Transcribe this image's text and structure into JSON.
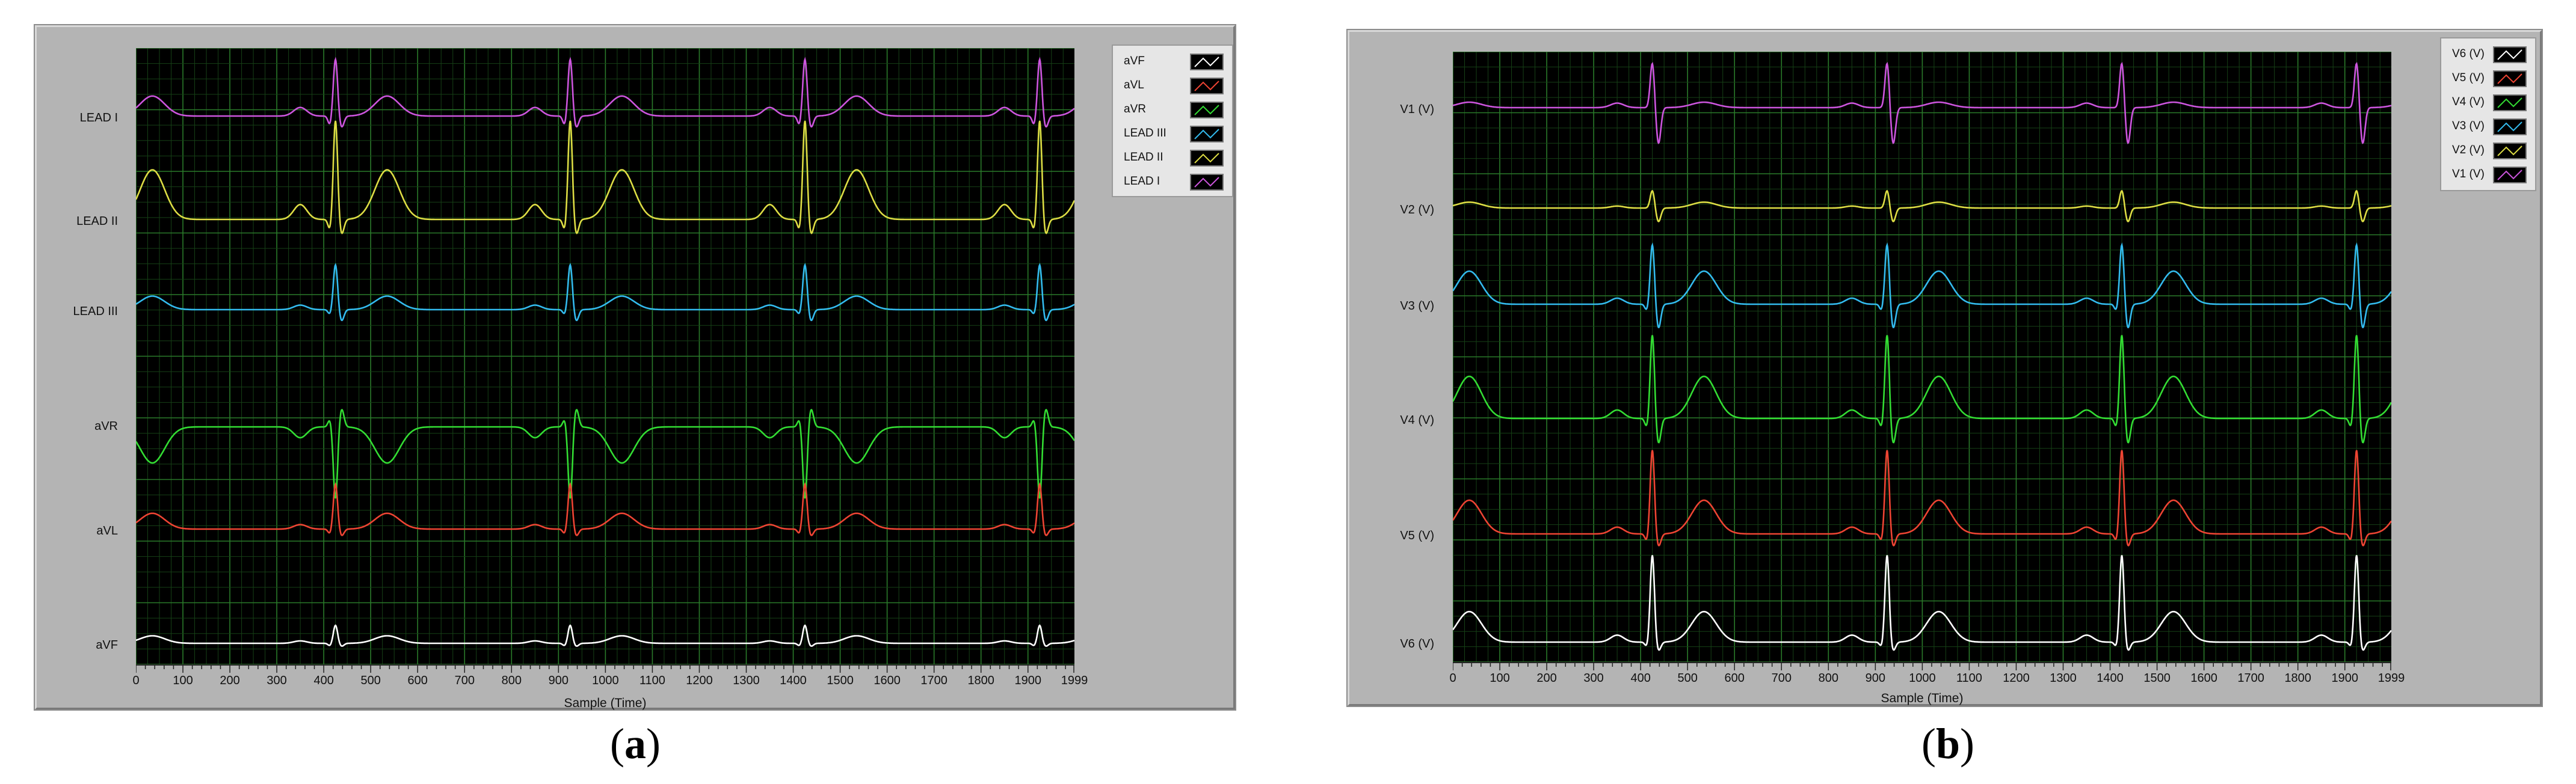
{
  "figures": [
    {
      "id": "a",
      "caption_letter": "a",
      "x_axis_title": "Sample (Time)",
      "x_ticks": [
        "0",
        "100",
        "200",
        "300",
        "400",
        "500",
        "600",
        "700",
        "800",
        "900",
        "1000",
        "1100",
        "1200",
        "1300",
        "1400",
        "1500",
        "1600",
        "1700",
        "1800",
        "1900",
        "1999"
      ],
      "channels": [
        "LEAD I",
        "LEAD II",
        "LEAD III",
        "aVR",
        "aVL",
        "aVF"
      ],
      "legend": [
        "aVF",
        "aVL",
        "aVR",
        "LEAD III",
        "LEAD II",
        "LEAD I"
      ]
    },
    {
      "id": "b",
      "caption_letter": "b",
      "x_axis_title": "Sample (Time)",
      "x_ticks": [
        "0",
        "100",
        "200",
        "300",
        "400",
        "500",
        "600",
        "700",
        "800",
        "900",
        "1000",
        "1100",
        "1200",
        "1300",
        "1400",
        "1500",
        "1600",
        "1700",
        "1800",
        "1900",
        "1999"
      ],
      "channels": [
        "V1 (V)",
        "V2 (V)",
        "V3 (V)",
        "V4 (V)",
        "V5 (V)",
        "V6 (V)"
      ],
      "legend": [
        "V6 (V)",
        "V5 (V)",
        "V4 (V)",
        "V3 (V)",
        "V2 (V)",
        "V1 (V)"
      ]
    }
  ],
  "chart_data": [
    {
      "type": "line",
      "title": "",
      "xlabel": "Sample (Time)",
      "ylabel": "",
      "xlim": [
        0,
        1999
      ],
      "grid": true,
      "legend_position": "right",
      "background_color": "#000000",
      "grid_color": "#1f5c1f",
      "r_peak_samples": [
        425,
        925,
        1425,
        1925
      ],
      "series": [
        {
          "name": "LEAD I",
          "color": "#cc55dd",
          "r_amp": 1.0,
          "q_amp": -0.15,
          "s_amp": -0.2,
          "t_amp": 0.35,
          "p_amp": 0.15,
          "t_inverted": false
        },
        {
          "name": "LEAD II",
          "color": "#dddd44",
          "r_amp": 1.0,
          "q_amp": -0.1,
          "s_amp": -0.15,
          "t_amp": 0.5,
          "p_amp": 0.15,
          "t_inverted": false
        },
        {
          "name": "LEAD III",
          "color": "#33bbee",
          "r_amp": 1.0,
          "q_amp": -0.1,
          "s_amp": -0.25,
          "t_amp": 0.3,
          "p_amp": 0.1,
          "t_inverted": false
        },
        {
          "name": "aVR",
          "color": "#33dd33",
          "r_amp": -1.0,
          "q_amp": 0.1,
          "s_amp": 0.25,
          "t_amp": -0.5,
          "p_amp": -0.15,
          "t_inverted": true
        },
        {
          "name": "aVL",
          "color": "#ee4433",
          "r_amp": 1.0,
          "q_amp": -0.1,
          "s_amp": -0.15,
          "t_amp": 0.35,
          "p_amp": 0.1,
          "t_inverted": false
        },
        {
          "name": "aVF",
          "color": "#ffffff",
          "r_amp": 0.6,
          "q_amp": -0.08,
          "s_amp": -0.1,
          "t_amp": 0.25,
          "p_amp": 0.08,
          "t_inverted": false
        }
      ]
    },
    {
      "type": "line",
      "title": "",
      "xlabel": "Sample (Time)",
      "ylabel": "",
      "xlim": [
        0,
        1999
      ],
      "grid": true,
      "legend_position": "right",
      "background_color": "#000000",
      "grid_color": "#1f5c1f",
      "r_peak_samples": [
        425,
        925,
        1425,
        1925
      ],
      "series": [
        {
          "name": "V1 (V)",
          "color": "#cc55dd",
          "r_amp": 1.0,
          "q_amp": 0.0,
          "s_amp": -0.8,
          "t_amp": 0.12,
          "p_amp": 0.1,
          "t_inverted": false
        },
        {
          "name": "V2 (V)",
          "color": "#dddd44",
          "r_amp": 0.45,
          "q_amp": 0.0,
          "s_amp": -0.35,
          "t_amp": 0.15,
          "p_amp": 0.05,
          "t_inverted": false
        },
        {
          "name": "V3 (V)",
          "color": "#33bbee",
          "r_amp": 1.0,
          "q_amp": -0.1,
          "s_amp": -0.4,
          "t_amp": 0.55,
          "p_amp": 0.1,
          "t_inverted": false
        },
        {
          "name": "V4 (V)",
          "color": "#33dd33",
          "r_amp": 1.0,
          "q_amp": -0.1,
          "s_amp": -0.3,
          "t_amp": 0.5,
          "p_amp": 0.1,
          "t_inverted": false
        },
        {
          "name": "V5 (V)",
          "color": "#ee4433",
          "r_amp": 1.0,
          "q_amp": -0.08,
          "s_amp": -0.15,
          "t_amp": 0.4,
          "p_amp": 0.08,
          "t_inverted": false
        },
        {
          "name": "V6 (V)",
          "color": "#ffffff",
          "r_amp": 1.0,
          "q_amp": -0.05,
          "s_amp": -0.1,
          "t_amp": 0.35,
          "p_amp": 0.08,
          "t_inverted": false
        }
      ]
    }
  ]
}
